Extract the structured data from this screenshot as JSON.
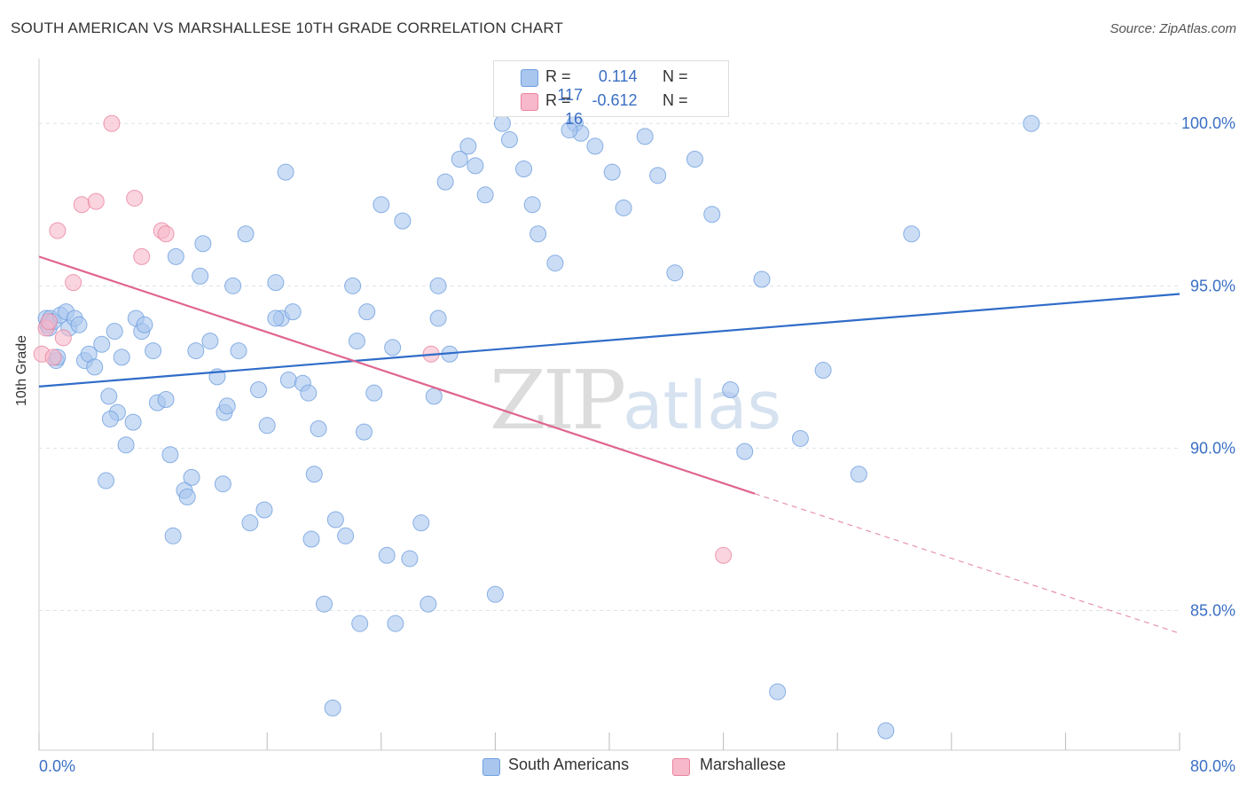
{
  "title": "SOUTH AMERICAN VS MARSHALLESE 10TH GRADE CORRELATION CHART",
  "source": "Source: ZipAtlas.com",
  "watermark": {
    "zip": "ZIP",
    "atlas": "atlas"
  },
  "legend": {
    "r_label": "R =",
    "n_label": "N =",
    "blue": {
      "r": "0.114",
      "n": "117",
      "color": "#a9c6ee"
    },
    "pink": {
      "r": "-0.612",
      "n": "16",
      "color": "#f6b8ca"
    }
  },
  "chart_data": {
    "type": "scatter",
    "title": "SOUTH AMERICAN VS MARSHALLESE 10TH GRADE CORRELATION CHART",
    "xlabel": "",
    "ylabel": "10th Grade",
    "xlim": [
      0,
      80
    ],
    "ylim": [
      80.7,
      102
    ],
    "x_tick_labels": [
      "0.0%",
      "80.0%"
    ],
    "y_ticks": [
      100,
      95,
      90,
      85
    ],
    "y_tick_labels": [
      "100.0%",
      "95.0%",
      "90.0%",
      "85.0%"
    ],
    "grid": true,
    "legend_position": "top-center",
    "series": [
      {
        "name": "South Americans",
        "color": "#6f9fdf",
        "fill": "#a9c6ee",
        "points": [
          [
            0.5,
            94.0
          ],
          [
            0.6,
            93.8
          ],
          [
            0.7,
            93.7
          ],
          [
            0.8,
            94.0
          ],
          [
            1.0,
            93.9
          ],
          [
            1.2,
            92.7
          ],
          [
            1.5,
            94.1
          ],
          [
            1.9,
            94.2
          ],
          [
            1.3,
            92.8
          ],
          [
            2.1,
            93.7
          ],
          [
            2.5,
            94.0
          ],
          [
            2.8,
            93.8
          ],
          [
            3.2,
            92.7
          ],
          [
            3.5,
            92.9
          ],
          [
            3.9,
            92.5
          ],
          [
            4.4,
            93.2
          ],
          [
            4.9,
            91.6
          ],
          [
            5.3,
            93.6
          ],
          [
            5.5,
            91.1
          ],
          [
            5.0,
            90.9
          ],
          [
            4.7,
            89.0
          ],
          [
            5.8,
            92.8
          ],
          [
            6.1,
            90.1
          ],
          [
            6.6,
            90.8
          ],
          [
            6.8,
            94.0
          ],
          [
            7.2,
            93.6
          ],
          [
            7.4,
            93.8
          ],
          [
            8.0,
            93.0
          ],
          [
            8.3,
            91.4
          ],
          [
            8.9,
            91.5
          ],
          [
            9.2,
            89.8
          ],
          [
            9.6,
            95.9
          ],
          [
            10.2,
            88.7
          ],
          [
            10.7,
            89.1
          ],
          [
            10.4,
            88.5
          ],
          [
            11.0,
            93.0
          ],
          [
            11.3,
            95.3
          ],
          [
            11.5,
            96.3
          ],
          [
            12.0,
            93.3
          ],
          [
            12.5,
            92.2
          ],
          [
            13.0,
            91.1
          ],
          [
            13.2,
            91.3
          ],
          [
            13.6,
            95.0
          ],
          [
            14.0,
            93.0
          ],
          [
            14.5,
            96.6
          ],
          [
            14.8,
            87.7
          ],
          [
            15.4,
            91.8
          ],
          [
            15.8,
            88.1
          ],
          [
            16.0,
            90.7
          ],
          [
            16.6,
            95.1
          ],
          [
            17.0,
            94.0
          ],
          [
            17.3,
            98.5
          ],
          [
            17.5,
            92.1
          ],
          [
            17.8,
            94.2
          ],
          [
            18.5,
            92.0
          ],
          [
            18.9,
            91.7
          ],
          [
            19.1,
            87.2
          ],
          [
            19.3,
            89.2
          ],
          [
            19.6,
            90.6
          ],
          [
            20.0,
            85.2
          ],
          [
            20.8,
            87.8
          ],
          [
            21.5,
            87.3
          ],
          [
            22.0,
            95.0
          ],
          [
            22.3,
            93.3
          ],
          [
            22.5,
            84.6
          ],
          [
            22.8,
            90.5
          ],
          [
            23.0,
            94.2
          ],
          [
            23.5,
            91.7
          ],
          [
            24.0,
            97.5
          ],
          [
            24.4,
            86.7
          ],
          [
            25.0,
            84.6
          ],
          [
            25.5,
            97.0
          ],
          [
            26.0,
            86.6
          ],
          [
            26.8,
            87.7
          ],
          [
            27.3,
            85.2
          ],
          [
            27.7,
            91.6
          ],
          [
            28.0,
            95.0
          ],
          [
            28.5,
            98.2
          ],
          [
            28.8,
            92.9
          ],
          [
            29.5,
            98.9
          ],
          [
            30.1,
            99.3
          ],
          [
            30.6,
            98.7
          ],
          [
            31.3,
            97.8
          ],
          [
            32.0,
            85.5
          ],
          [
            32.5,
            100.0
          ],
          [
            33.0,
            99.5
          ],
          [
            34.0,
            98.6
          ],
          [
            34.6,
            97.5
          ],
          [
            35.0,
            96.6
          ],
          [
            36.2,
            95.7
          ],
          [
            37.6,
            100.0
          ],
          [
            38.0,
            99.7
          ],
          [
            39.0,
            99.3
          ],
          [
            40.2,
            98.5
          ],
          [
            41.0,
            97.4
          ],
          [
            42.5,
            99.6
          ],
          [
            43.4,
            98.4
          ],
          [
            44.6,
            95.4
          ],
          [
            46.0,
            98.9
          ],
          [
            47.2,
            97.2
          ],
          [
            48.5,
            91.8
          ],
          [
            49.5,
            89.9
          ],
          [
            50.7,
            95.2
          ],
          [
            51.8,
            82.5
          ],
          [
            53.4,
            90.3
          ],
          [
            55.0,
            92.4
          ],
          [
            57.5,
            89.2
          ],
          [
            59.4,
            81.3
          ],
          [
            61.2,
            96.6
          ],
          [
            69.6,
            100.0
          ],
          [
            28.0,
            94.0
          ],
          [
            12.9,
            88.9
          ],
          [
            9.4,
            87.3
          ],
          [
            16.6,
            94.0
          ],
          [
            24.8,
            93.1
          ],
          [
            37.2,
            99.8
          ],
          [
            20.6,
            82.0
          ]
        ]
      },
      {
        "name": "Marshallese",
        "color": "#e9849f",
        "fill": "#f6b8ca",
        "points": [
          [
            0.2,
            92.9
          ],
          [
            0.5,
            93.7
          ],
          [
            0.7,
            93.9
          ],
          [
            1.0,
            92.8
          ],
          [
            1.3,
            96.7
          ],
          [
            1.7,
            93.4
          ],
          [
            2.4,
            95.1
          ],
          [
            3.0,
            97.5
          ],
          [
            4.0,
            97.6
          ],
          [
            5.1,
            100.0
          ],
          [
            6.7,
            97.7
          ],
          [
            7.2,
            95.9
          ],
          [
            8.6,
            96.7
          ],
          [
            8.9,
            96.6
          ],
          [
            27.5,
            92.9
          ],
          [
            48.0,
            86.7
          ]
        ]
      }
    ],
    "trendlines": [
      {
        "series": "South Americans",
        "x": [
          0,
          80
        ],
        "y": [
          91.9,
          94.75
        ],
        "color": "#2f6cc8"
      },
      {
        "series": "Marshallese",
        "x": [
          0,
          50.2
        ],
        "y": [
          95.9,
          88.6
        ],
        "dashed_x": [
          50.2,
          80
        ],
        "dashed_y": [
          88.6,
          84.3
        ],
        "color": "#e0648f"
      }
    ]
  },
  "bottom_legend": [
    {
      "label": "South Americans",
      "color": "#a9c6ee"
    },
    {
      "label": "Marshallese",
      "color": "#f6b8ca"
    }
  ]
}
